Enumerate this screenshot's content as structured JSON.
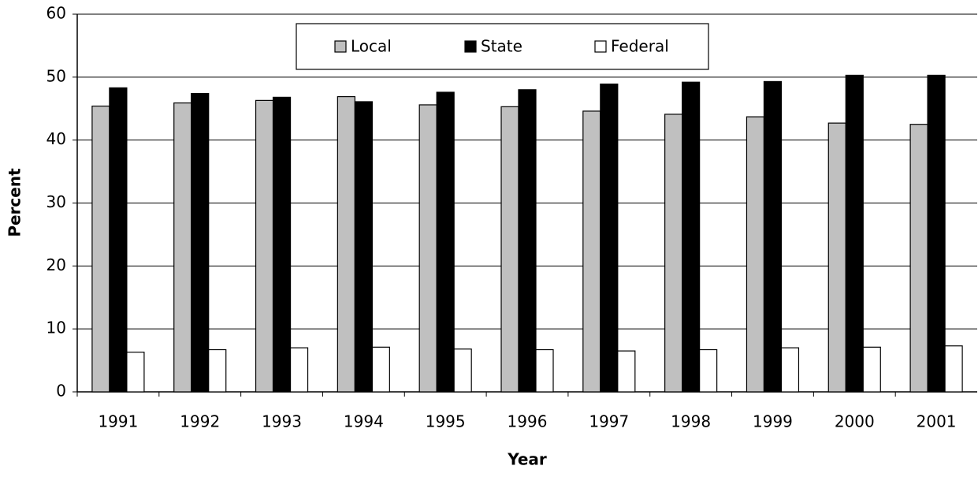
{
  "chart_data": {
    "type": "bar",
    "x_label": "Year",
    "y_label": "Percent",
    "categories": [
      "1991",
      "1992",
      "1993",
      "1994",
      "1995",
      "1996",
      "1997",
      "1998",
      "1999",
      "2000",
      "2001"
    ],
    "series": [
      {
        "name": "Local",
        "color": "#c0c0c0",
        "values": [
          45.4,
          45.9,
          46.3,
          46.9,
          45.6,
          45.3,
          44.6,
          44.1,
          43.7,
          42.7,
          42.5
        ]
      },
      {
        "name": "State",
        "color": "#000000",
        "values": [
          48.3,
          47.4,
          46.8,
          46.1,
          47.6,
          48.0,
          48.9,
          49.2,
          49.3,
          50.3,
          50.3
        ]
      },
      {
        "name": "Federal",
        "color": "#ffffff",
        "values": [
          6.3,
          6.7,
          7.0,
          7.1,
          6.8,
          6.7,
          6.5,
          6.7,
          7.0,
          7.1,
          7.3
        ]
      }
    ],
    "ylim": [
      0,
      60
    ],
    "yticks": [
      0,
      10,
      20,
      30,
      40,
      50,
      60
    ],
    "grid": true,
    "legend": "top"
  }
}
